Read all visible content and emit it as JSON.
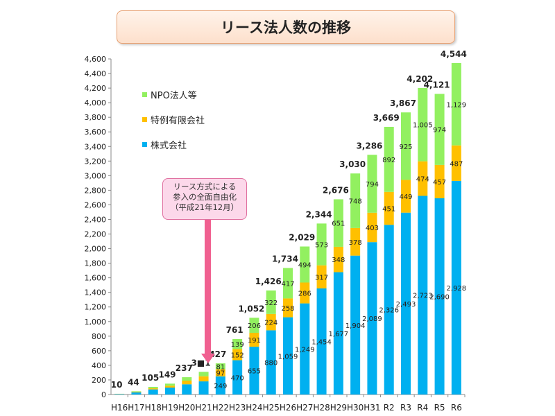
{
  "chart_data": {
    "type": "bar",
    "stacked": true,
    "title": "リース法人数の推移",
    "categories": [
      "H16",
      "H17",
      "H18",
      "H19",
      "H20",
      "H21",
      "H22",
      "H23",
      "H24",
      "H25",
      "H26",
      "H27",
      "H28",
      "H29",
      "H30",
      "H31",
      "R2",
      "R3",
      "R4",
      "R5",
      "R6"
    ],
    "totals": [
      "10",
      "44",
      "105",
      "149",
      "237",
      "3■1",
      "427",
      "761",
      "1,052",
      "1,426",
      "1,734",
      "2,029",
      "2,344",
      "2,676",
      "3,030",
      "3,286",
      "3,669",
      "3,867",
      "4,202",
      "4,121",
      "4,544"
    ],
    "series": [
      {
        "name": "株式会社",
        "color": "#00b0f0",
        "values": [
          7,
          30,
          70,
          95,
          140,
          180,
          249,
          470,
          655,
          880,
          1059,
          1249,
          1454,
          1677,
          1904,
          2089,
          2326,
          2493,
          2723,
          2690,
          2928
        ],
        "labeled_from": 6
      },
      {
        "name": "特例有限会社",
        "color": "#ffc000",
        "values": [
          2,
          8,
          15,
          25,
          50,
          70,
          97,
          152,
          191,
          224,
          258,
          286,
          317,
          348,
          378,
          403,
          451,
          449,
          474,
          457,
          487
        ],
        "labeled_from": 6
      },
      {
        "name": "NPO法人等",
        "color": "#92f060",
        "values": [
          1,
          6,
          20,
          29,
          47,
          61,
          81,
          139,
          206,
          322,
          417,
          494,
          573,
          651,
          748,
          794,
          892,
          925,
          1005,
          974,
          1129
        ],
        "labeled_from": 6
      }
    ],
    "yticks": [
      "0",
      "200",
      "400",
      "600",
      "800",
      "1,000",
      "1,200",
      "1,400",
      "1,600",
      "1,800",
      "2,000",
      "2,200",
      "2,400",
      "2,600",
      "2,800",
      "3,000",
      "3,200",
      "3,400",
      "3,600",
      "3,800",
      "4,000",
      "4,200",
      "4,400",
      "4,600"
    ],
    "ylim": [
      0,
      4600
    ],
    "legend": "top-left",
    "annotation": [
      "リース方式による",
      "参入の全面自由化",
      "（平成21年12月）"
    ]
  }
}
